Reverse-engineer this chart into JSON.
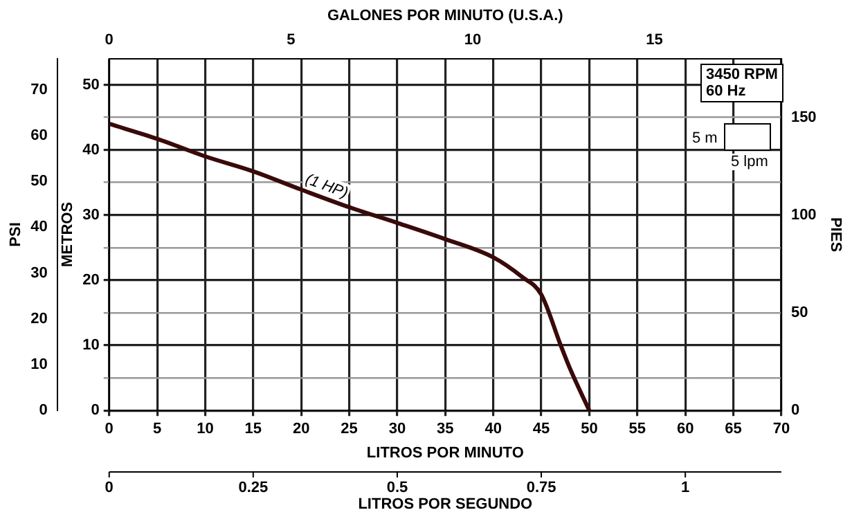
{
  "chart_data": {
    "type": "line",
    "xlabel": "LITROS POR MINUTO",
    "ylabel": "METROS",
    "y2label": "PIES",
    "y3label": "PSI",
    "x2label": "GALONES POR MINUTO (U.S.A.)",
    "x": [
      0,
      5,
      10,
      15,
      20,
      25,
      30,
      35,
      40,
      43,
      45,
      47,
      48,
      50
    ],
    "series": [
      {
        "name": "(1 HP)",
        "color": "#3a0a0a",
        "values": [
          44.0,
          41.7,
          39.0,
          36.7,
          33.9,
          31.2,
          28.8,
          26.3,
          23.5,
          20.5,
          17.8,
          10.1,
          6.4,
          0
        ]
      }
    ],
    "xlim": [
      0,
      70
    ],
    "xticks": [
      0,
      5,
      10,
      15,
      20,
      25,
      30,
      35,
      40,
      45,
      50,
      55,
      60,
      65,
      70
    ],
    "ylim": [
      0,
      54
    ],
    "yticks": [
      0,
      {
        "value": 5,
        "label": null
      },
      10,
      {
        "value": 15,
        "label": null
      },
      20,
      {
        "value": 25,
        "label": null
      },
      30,
      {
        "value": 35,
        "label": null
      },
      40,
      {
        "value": 45,
        "label": null
      },
      50
    ],
    "y2lim": [
      0,
      180
    ],
    "y2ticks": [
      0,
      50,
      100,
      150
    ],
    "y3lim": [
      0,
      76.8
    ],
    "y3ticks": [
      0,
      10,
      20,
      30,
      40,
      50,
      60,
      70
    ],
    "x2lim": [
      0,
      18.49
    ],
    "x2ticks": [
      0,
      5,
      10,
      15
    ],
    "grid": true,
    "legend": false,
    "marker": "none",
    "line_style": "solid",
    "annotations": [
      "3450 RPM\n60 Hz",
      "5 m",
      "5 lpm",
      "0",
      "0.25",
      "0.5",
      "0.75",
      "1",
      "LITROS POR SEGUNDO"
    ]
  }
}
